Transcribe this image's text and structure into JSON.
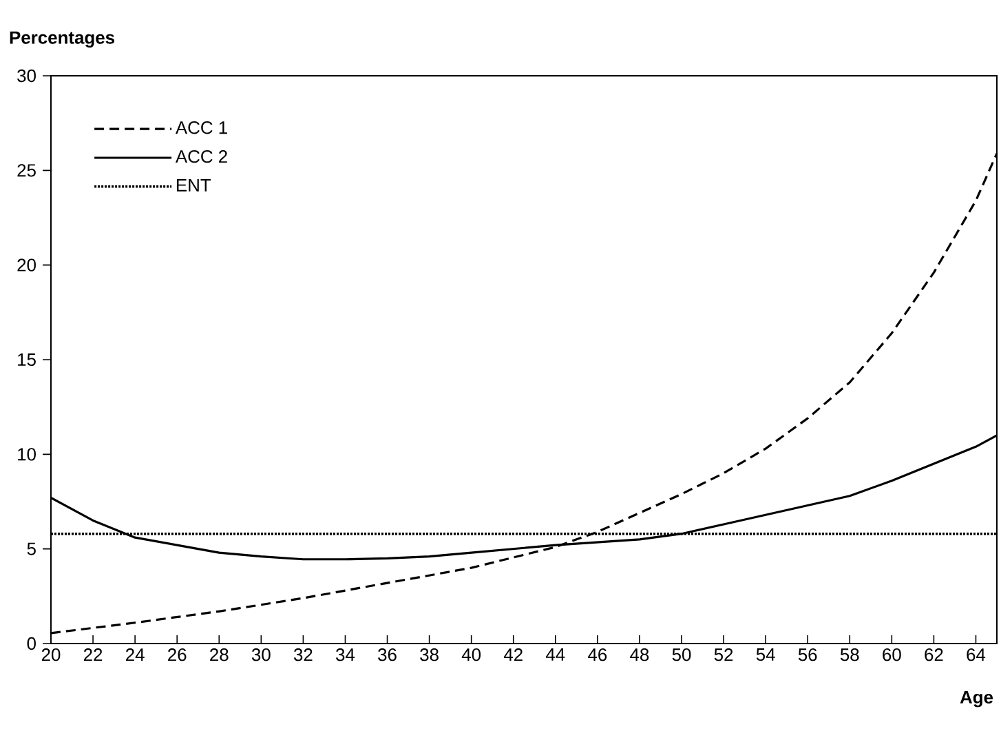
{
  "chart_data": {
    "type": "line",
    "xlabel": "Age",
    "ylabel": "Percentages",
    "xlim": [
      20,
      65
    ],
    "ylim": [
      0,
      30
    ],
    "xticks": [
      20,
      22,
      24,
      26,
      28,
      30,
      32,
      34,
      36,
      38,
      40,
      42,
      44,
      46,
      48,
      50,
      52,
      54,
      56,
      58,
      60,
      62,
      64
    ],
    "yticks": [
      0,
      5,
      10,
      15,
      20,
      25,
      30
    ],
    "legend": "top left",
    "grid": false,
    "marker": "none",
    "series": [
      {
        "name": "ACC 1",
        "color": "#000000",
        "line_style": "dashed",
        "x": [
          20,
          24,
          28,
          32,
          36,
          40,
          44,
          46,
          48,
          50,
          52,
          54,
          56,
          58,
          60,
          62,
          64,
          65
        ],
        "values": [
          0.55,
          1.1,
          1.7,
          2.4,
          3.2,
          4.0,
          5.1,
          5.9,
          6.9,
          7.9,
          9.0,
          10.3,
          11.9,
          13.8,
          16.4,
          19.6,
          23.4,
          25.9
        ]
      },
      {
        "name": "ACC 2",
        "color": "#000000",
        "line_style": "solid",
        "x": [
          20,
          22,
          24,
          26,
          28,
          30,
          32,
          34,
          36,
          38,
          40,
          44,
          48,
          50,
          52,
          54,
          56,
          58,
          60,
          62,
          64,
          65
        ],
        "values": [
          7.7,
          6.5,
          5.6,
          5.2,
          4.8,
          4.6,
          4.45,
          4.45,
          4.5,
          4.6,
          4.8,
          5.2,
          5.5,
          5.8,
          6.3,
          6.8,
          7.3,
          7.8,
          8.6,
          9.5,
          10.4,
          11.0
        ]
      },
      {
        "name": "ENT",
        "color": "#000000",
        "line_style": "dotted",
        "x": [
          20,
          65
        ],
        "values": [
          5.8,
          5.8
        ]
      }
    ]
  }
}
